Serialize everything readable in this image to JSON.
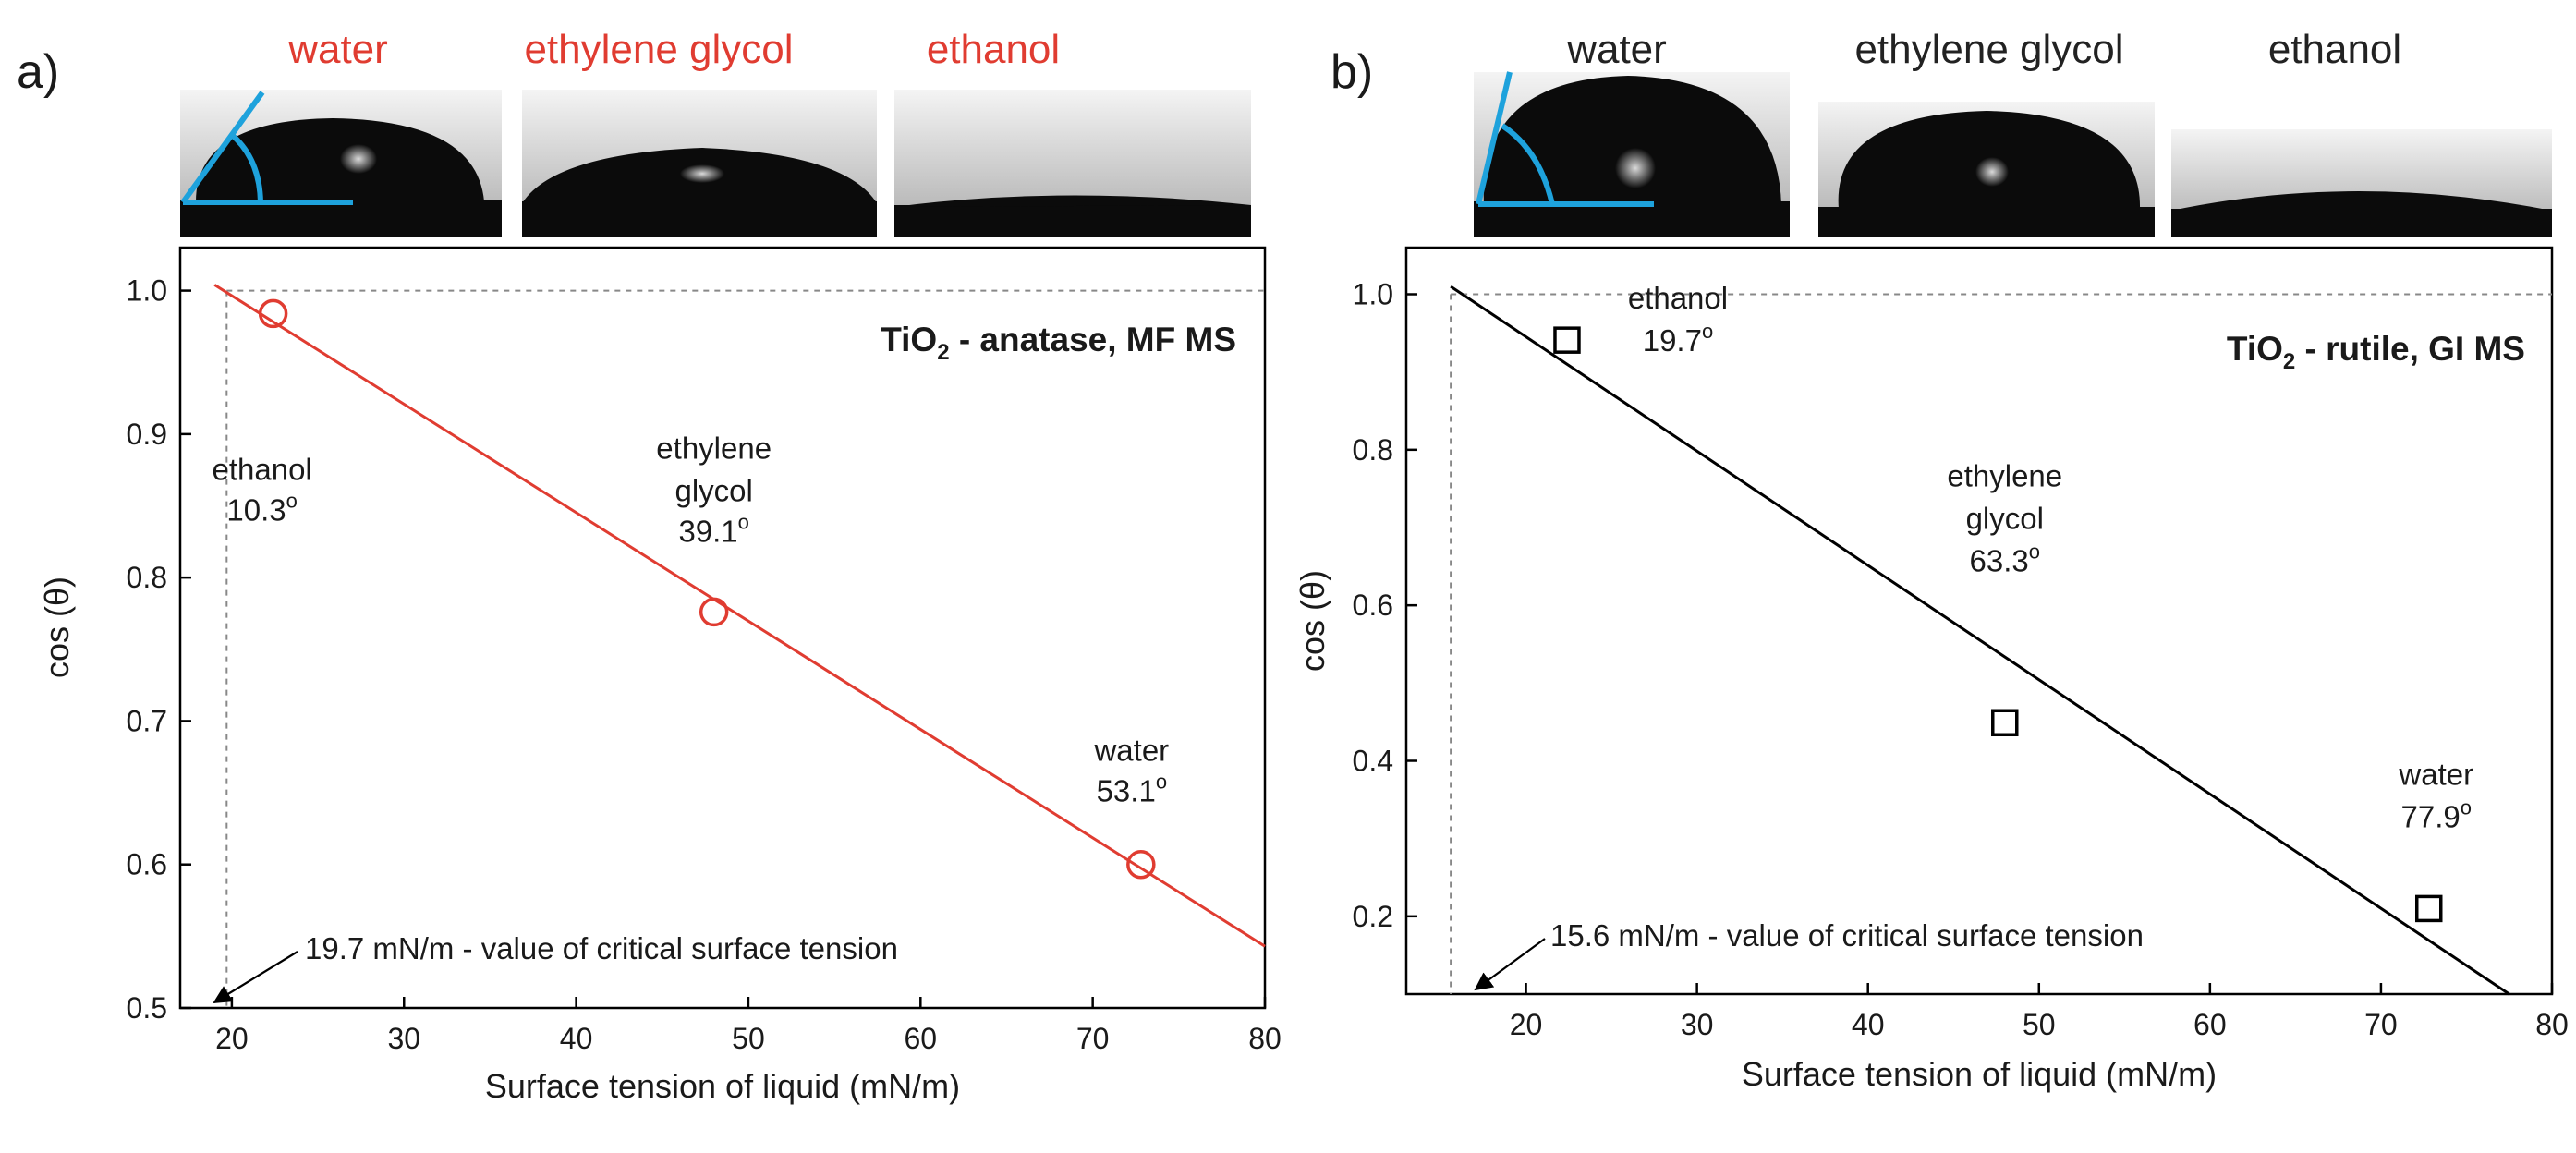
{
  "figure": {
    "panels": [
      {
        "letter": "a)",
        "photos": [
          "water",
          "ethylene glycol",
          "ethanol"
        ],
        "photo_label_color": "#e03c31",
        "title_main": "TiO",
        "title_sub": "2",
        "title_rest": " - anatase, MF MS",
        "callout": "19.7 mN/m - value of critical surface tension"
      },
      {
        "letter": "b)",
        "photos": [
          "water",
          "ethylene glycol",
          "ethanol"
        ],
        "photo_label_color": "#222222",
        "title_main": "TiO",
        "title_sub": "2",
        "title_rest": " - rutile, GI MS",
        "callout": "15.6 mN/m - value of critical surface tension"
      }
    ]
  },
  "chart_data": [
    {
      "type": "scatter",
      "panel": "a)",
      "title": "TiO2 - anatase, MF MS",
      "xlabel": "Surface tension of liquid (mN/m)",
      "ylabel": "cos (θ)",
      "xlim": [
        17,
        80
      ],
      "ylim": [
        0.5,
        1.03
      ],
      "xticks": [
        20,
        30,
        40,
        50,
        60,
        70,
        80
      ],
      "yticks": [
        0.5,
        0.6,
        0.7,
        0.8,
        0.9,
        1.0
      ],
      "ytick_labels": [
        "0.5",
        "0.6",
        "0.7",
        "0.8",
        "0.9",
        "1.0"
      ],
      "marker": "circle",
      "color": "#e03c31",
      "points": [
        {
          "liquid": "ethanol",
          "label_lines": [
            "ethanol"
          ],
          "angle": "10.3",
          "x": 22.4,
          "y": 0.984
        },
        {
          "liquid": "ethylene glycol",
          "label_lines": [
            "ethylene",
            "glycol"
          ],
          "angle": "39.1",
          "x": 48.0,
          "y": 0.776
        },
        {
          "liquid": "water",
          "label_lines": [
            "water"
          ],
          "angle": "53.1",
          "x": 72.8,
          "y": 0.6
        }
      ],
      "fit_line": {
        "x": [
          19.0,
          80.0
        ],
        "y": [
          1.004,
          0.543
        ]
      },
      "reference": {
        "critical_tension": 19.7,
        "cos_value": 1.0
      },
      "callout_text": "19.7 mN/m - value of critical surface tension"
    },
    {
      "type": "scatter",
      "panel": "b)",
      "title": "TiO2 - rutile, GI MS",
      "xlabel": "Surface tension of liquid (mN/m)",
      "ylabel": "cos (θ)",
      "xlim": [
        13,
        80
      ],
      "ylim": [
        0.1,
        1.06
      ],
      "xticks": [
        20,
        30,
        40,
        50,
        60,
        70,
        80
      ],
      "yticks": [
        0.2,
        0.4,
        0.6,
        0.8,
        1.0
      ],
      "ytick_labels": [
        "0.2",
        "0.4",
        "0.6",
        "0.8",
        "1.0"
      ],
      "marker": "square",
      "color": "#000000",
      "points": [
        {
          "liquid": "ethanol",
          "label_lines": [
            "ethanol"
          ],
          "angle": "19.7",
          "x": 22.4,
          "y": 0.941
        },
        {
          "liquid": "ethylene glycol",
          "label_lines": [
            "ethylene",
            "glycol"
          ],
          "angle": "63.3",
          "x": 48.0,
          "y": 0.449
        },
        {
          "liquid": "water",
          "label_lines": [
            "water"
          ],
          "angle": "77.9",
          "x": 72.8,
          "y": 0.21
        }
      ],
      "fit_line": {
        "x": [
          15.6,
          77.5
        ],
        "y": [
          1.01,
          0.1
        ]
      },
      "reference": {
        "critical_tension": 15.6,
        "cos_value": 1.0
      },
      "callout_text": "15.6 mN/m - value of critical surface tension"
    }
  ]
}
